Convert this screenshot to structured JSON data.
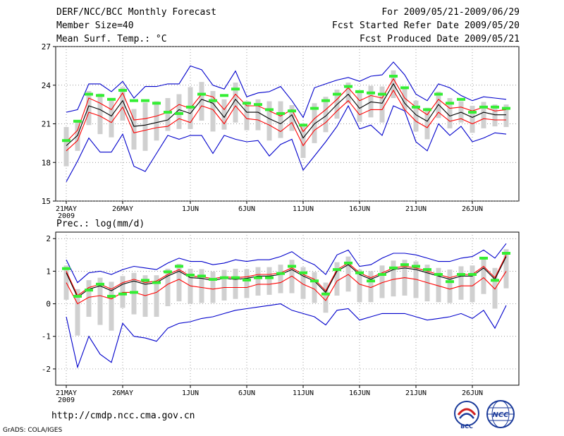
{
  "header": {
    "title": "DERF/NCC/BCC Monthly Forecast",
    "member_size": "Member Size=40",
    "period": "For 2009/05/21-2009/06/29",
    "fcst_start": "Fcst Started Refer Date 2009/05/20",
    "fcst_produced": "Fcst Produced Date 2009/05/21"
  },
  "footer": {
    "url": "http://cmdp.ncc.cma.gov.cn",
    "grads_credit": "GrADS: COLA/IGES",
    "logo_bcc_text": "BCC",
    "logo_ncc_text": "NCC"
  },
  "colors": {
    "ensemble_mean": "#000000",
    "spread_band": "#ff0000",
    "envelope": "#0000cc",
    "green_marker": "#33ee33",
    "box": "#d0d0d0"
  },
  "chart_data": [
    {
      "type": "line",
      "title": "Mean Surf. Temp.: °C",
      "days": 40,
      "x_tick_labels": [
        "21MAY",
        "26MAY",
        "1JUN",
        "6JUN",
        "11JUN",
        "16JUN",
        "21JUN",
        "26JUN"
      ],
      "x_tick_day_index": [
        0,
        5,
        11,
        16,
        21,
        26,
        31,
        36
      ],
      "year_label": "2009",
      "ylim": [
        15,
        27
      ],
      "yticks": [
        15,
        18,
        21,
        24,
        27
      ],
      "series": [
        {
          "name": "ensemble mean",
          "values": [
            19.3,
            20.1,
            22.4,
            22.1,
            21.6,
            22.8,
            20.8,
            20.9,
            21.1,
            21.3,
            22.1,
            21.8,
            22.9,
            22.6,
            21.5,
            22.9,
            21.9,
            21.9,
            21.4,
            21.0,
            21.7,
            19.9,
            21.0,
            21.6,
            22.5,
            23.3,
            22.2,
            22.7,
            22.6,
            24.1,
            22.6,
            21.7,
            21.2,
            22.5,
            21.6,
            21.9,
            21.5,
            21.9,
            21.7,
            21.7
          ]
        },
        {
          "name": "upper spread",
          "values": [
            19.6,
            20.5,
            23.0,
            22.6,
            22.1,
            23.4,
            21.3,
            21.4,
            21.6,
            21.9,
            22.5,
            22.2,
            23.3,
            23.1,
            22.1,
            23.3,
            22.4,
            22.4,
            22.0,
            21.6,
            22.1,
            20.4,
            21.4,
            22.1,
            22.9,
            23.8,
            22.8,
            23.2,
            23.0,
            24.5,
            23.0,
            22.3,
            21.7,
            22.9,
            22.2,
            22.3,
            22.0,
            22.3,
            22.0,
            22.1
          ]
        },
        {
          "name": "lower spread",
          "values": [
            18.9,
            19.7,
            21.9,
            21.6,
            21.1,
            22.3,
            20.3,
            20.5,
            20.7,
            20.8,
            21.4,
            21.1,
            22.4,
            22.1,
            21.0,
            22.4,
            21.4,
            21.3,
            20.9,
            20.4,
            21.1,
            19.3,
            20.5,
            21.1,
            22.0,
            22.8,
            21.7,
            22.1,
            22.1,
            23.6,
            22.1,
            21.2,
            20.7,
            21.9,
            21.2,
            21.4,
            21.0,
            21.4,
            21.3,
            21.3
          ]
        },
        {
          "name": "ensemble max",
          "values": [
            21.9,
            22.1,
            24.1,
            24.1,
            23.5,
            24.3,
            23.0,
            23.9,
            23.9,
            24.1,
            24.1,
            25.5,
            25.2,
            24.0,
            23.7,
            25.1,
            23.1,
            23.4,
            23.5,
            23.9,
            22.8,
            21.5,
            23.8,
            24.1,
            24.4,
            24.6,
            24.3,
            24.7,
            24.8,
            25.8,
            24.8,
            23.3,
            22.8,
            24.1,
            23.8,
            23.2,
            22.8,
            23.1,
            23.0,
            22.9
          ]
        },
        {
          "name": "ensemble min",
          "values": [
            16.5,
            18.1,
            19.9,
            18.8,
            18.8,
            20.2,
            17.7,
            17.3,
            18.7,
            20.1,
            19.8,
            20.1,
            20.1,
            18.7,
            20.1,
            19.8,
            19.6,
            19.7,
            18.5,
            19.4,
            19.8,
            17.4,
            18.5,
            19.6,
            20.8,
            22.4,
            20.6,
            20.9,
            20.1,
            22.4,
            22.0,
            19.6,
            18.9,
            21.0,
            20.1,
            20.8,
            19.6,
            19.9,
            20.3,
            20.2
          ]
        },
        {
          "name": "green markers",
          "values": [
            19.7,
            21.2,
            23.3,
            23.2,
            22.9,
            23.6,
            22.8,
            22.8,
            22.6,
            21.9,
            21.8,
            22.3,
            23.3,
            22.8,
            23.2,
            23.7,
            22.6,
            22.5,
            22.1,
            21.8,
            22.0,
            20.9,
            22.2,
            22.8,
            23.3,
            23.9,
            23.5,
            23.4,
            23.3,
            24.7,
            23.8,
            22.3,
            22.1,
            23.3,
            22.6,
            22.9,
            21.9,
            22.3,
            22.3,
            22.2
          ]
        }
      ]
    },
    {
      "type": "line",
      "title": "Prec.: log(mm/d)",
      "days": 40,
      "x_tick_labels": [
        "21MAY",
        "26MAY",
        "1JUN",
        "6JUN",
        "11JUN",
        "16JUN",
        "21JUN",
        "26JUN"
      ],
      "x_tick_day_index": [
        0,
        5,
        11,
        16,
        21,
        26,
        31,
        36
      ],
      "year_label": "2009",
      "ylim": [
        -2.5,
        2.2
      ],
      "yticks": [
        -2,
        -1,
        0,
        1,
        2
      ],
      "series": [
        {
          "name": "ensemble mean",
          "values": [
            0.95,
            0.2,
            0.45,
            0.55,
            0.4,
            0.6,
            0.7,
            0.6,
            0.65,
            0.85,
            1.0,
            0.8,
            0.78,
            0.72,
            0.78,
            0.75,
            0.78,
            0.85,
            0.85,
            0.9,
            1.05,
            0.85,
            0.7,
            0.35,
            1.0,
            1.2,
            0.9,
            0.75,
            0.9,
            1.05,
            1.1,
            1.05,
            0.95,
            0.85,
            0.75,
            0.85,
            0.85,
            1.1,
            0.75,
            1.45
          ]
        },
        {
          "name": "upper spread",
          "values": [
            1.0,
            0.25,
            0.5,
            0.6,
            0.45,
            0.65,
            0.75,
            0.65,
            0.7,
            0.9,
            1.05,
            0.85,
            0.83,
            0.77,
            0.83,
            0.8,
            0.83,
            0.9,
            0.9,
            0.95,
            1.1,
            0.9,
            0.75,
            0.4,
            1.05,
            1.25,
            0.95,
            0.8,
            0.95,
            1.1,
            1.15,
            1.1,
            1.0,
            0.9,
            0.8,
            0.9,
            0.9,
            1.15,
            0.8,
            1.5
          ]
        },
        {
          "name": "lower spread",
          "values": [
            0.65,
            0.0,
            0.2,
            0.25,
            0.15,
            0.35,
            0.35,
            0.25,
            0.35,
            0.6,
            0.75,
            0.55,
            0.5,
            0.45,
            0.5,
            0.5,
            0.5,
            0.6,
            0.6,
            0.65,
            0.85,
            0.6,
            0.45,
            0.1,
            0.7,
            0.9,
            0.6,
            0.5,
            0.65,
            0.75,
            0.8,
            0.75,
            0.65,
            0.55,
            0.45,
            0.55,
            0.55,
            0.8,
            0.45,
            1.0
          ]
        },
        {
          "name": "ensemble max",
          "values": [
            1.35,
            0.65,
            0.95,
            1.0,
            0.9,
            1.05,
            1.15,
            1.1,
            1.05,
            1.25,
            1.4,
            1.3,
            1.3,
            1.2,
            1.25,
            1.35,
            1.3,
            1.35,
            1.35,
            1.45,
            1.6,
            1.35,
            1.2,
            0.9,
            1.5,
            1.65,
            1.15,
            1.2,
            1.4,
            1.55,
            1.55,
            1.5,
            1.4,
            1.3,
            1.3,
            1.4,
            1.45,
            1.65,
            1.4,
            1.85
          ]
        },
        {
          "name": "ensemble min",
          "values": [
            -0.4,
            -1.95,
            -1.0,
            -1.55,
            -1.8,
            -0.6,
            -1.0,
            -1.05,
            -1.15,
            -0.75,
            -0.6,
            -0.55,
            -0.45,
            -0.4,
            -0.3,
            -0.2,
            -0.15,
            -0.1,
            -0.05,
            0.0,
            -0.2,
            -0.3,
            -0.4,
            -0.65,
            -0.2,
            -0.15,
            -0.5,
            -0.4,
            -0.3,
            -0.3,
            -0.3,
            -0.4,
            -0.5,
            -0.45,
            -0.4,
            -0.3,
            -0.45,
            -0.2,
            -0.75,
            -0.05
          ]
        },
        {
          "name": "green markers",
          "values": [
            1.08,
            0.23,
            0.42,
            0.6,
            0.23,
            0.3,
            0.35,
            0.72,
            0.65,
            0.98,
            1.15,
            0.88,
            0.85,
            0.75,
            0.8,
            0.8,
            0.73,
            0.8,
            0.8,
            0.93,
            1.15,
            0.95,
            0.7,
            0.3,
            1.05,
            1.25,
            0.95,
            0.7,
            0.9,
            1.1,
            1.2,
            1.15,
            1.05,
            0.9,
            0.68,
            0.9,
            0.9,
            1.4,
            0.72,
            1.55
          ]
        }
      ]
    }
  ]
}
